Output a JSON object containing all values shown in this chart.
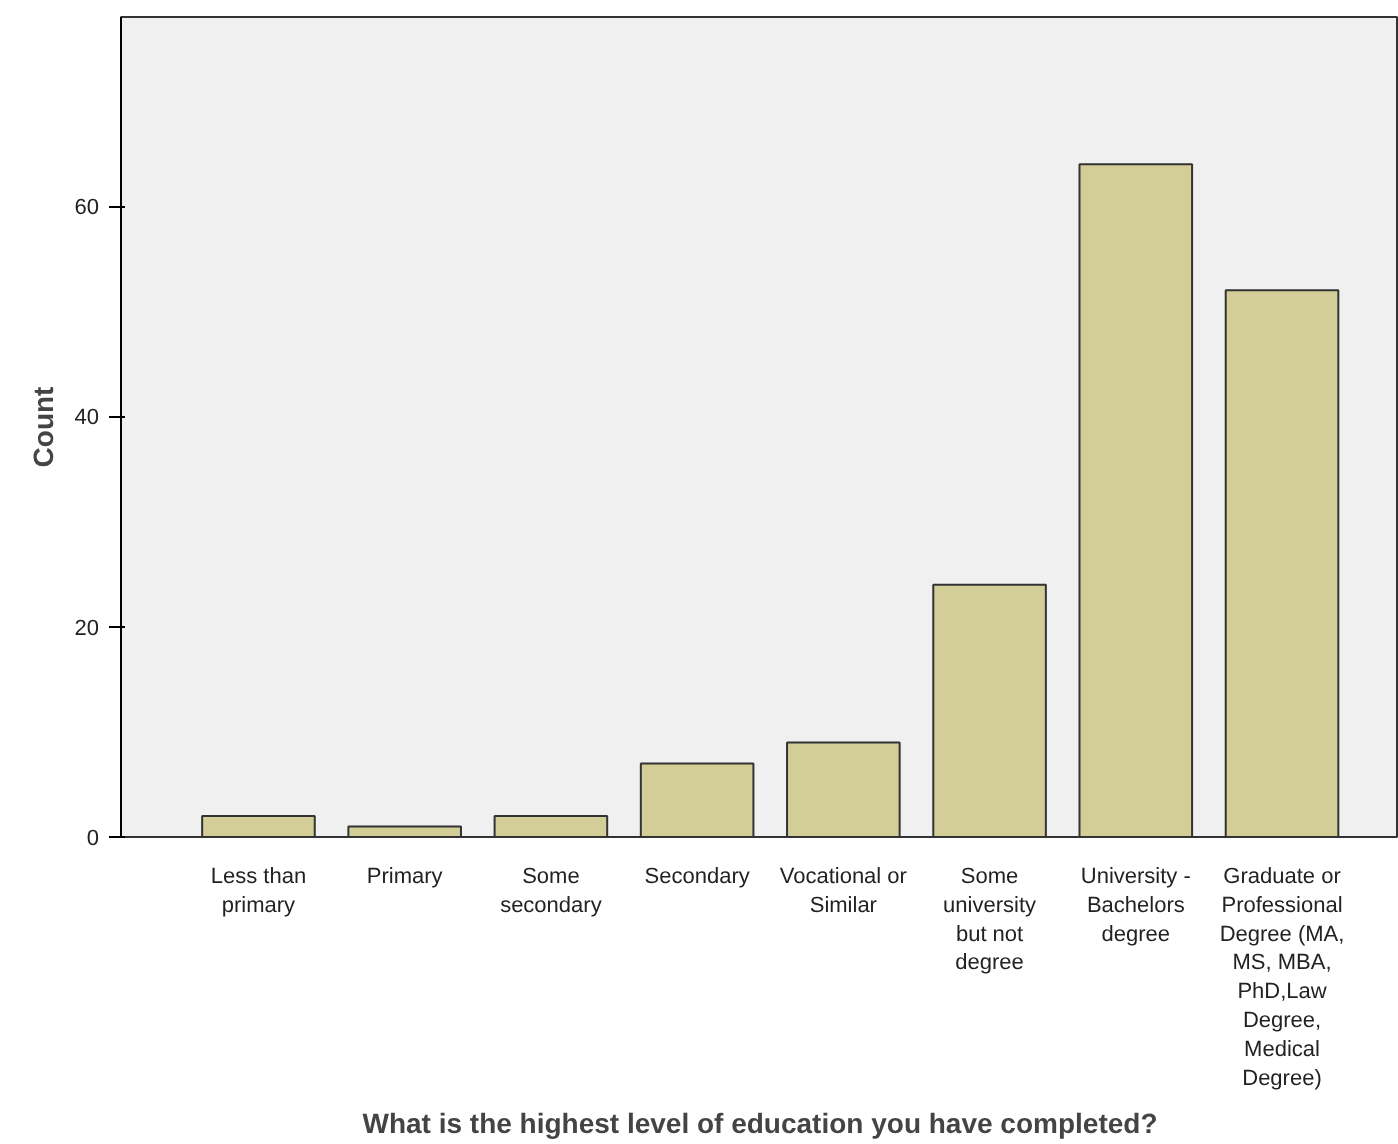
{
  "chart_data": {
    "type": "bar",
    "xlabel": "What is the highest level of education you have completed?",
    "ylabel": "Count",
    "categories": [
      "Less than primary",
      "Primary",
      "Some secondary",
      "Secondary",
      "Vocational or Similar",
      "Some university but not degree",
      "University - Bachelors degree",
      "Graduate or Professional Degree (MA, MS, MBA, PhD,Law Degree, Medical Degree)"
    ],
    "values": [
      2,
      1,
      2,
      7,
      9,
      24,
      64,
      52
    ],
    "color": "#d3ce98",
    "ylim": [
      0,
      78
    ],
    "yticks": [
      0,
      20,
      40,
      60
    ],
    "grid": false
  }
}
